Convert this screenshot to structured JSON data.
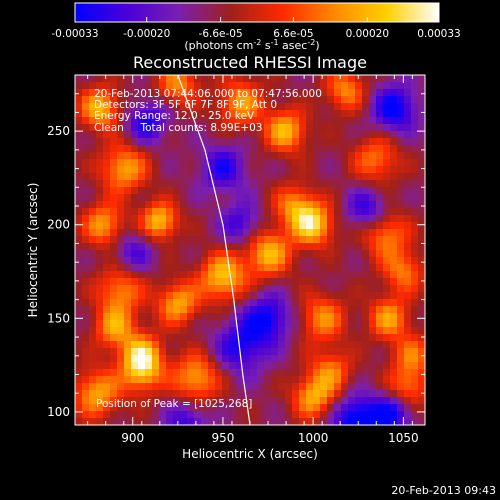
{
  "chart_data": {
    "type": "heatmap",
    "title": "Reconstructed RHESSI Image",
    "xlabel": "Heliocentric X (arcsec)",
    "ylabel": "Heliocentric Y (arcsec)",
    "xlim": [
      868,
      1062
    ],
    "ylim": [
      93,
      280
    ],
    "xticks": [
      900,
      950,
      1000,
      1050
    ],
    "yticks": [
      100,
      150,
      200,
      250
    ],
    "colorbar": {
      "label_prefix": "(photons cm",
      "label_exp1": "-2",
      "label_mid": " s",
      "label_exp2": "-1",
      "label_mid2": " asec",
      "label_exp3": "-2",
      "label_suffix": ")",
      "range": [
        -0.00033,
        0.00033
      ],
      "ticks": [
        {
          "value": -0.00033,
          "label": "-0.00033"
        },
        {
          "value": -0.0002,
          "label": "-0.00020"
        },
        {
          "value": -6.6e-05,
          "label": "-6.6e-05"
        },
        {
          "value": 6.6e-05,
          "label": "6.6e-05"
        },
        {
          "value": 0.0002,
          "label": "0.00020"
        },
        {
          "value": 0.00033,
          "label": "0.00033"
        }
      ],
      "colors": [
        "#0000ff",
        "#4a00d8",
        "#7a1fb0",
        "#a0201a",
        "#ff2a00",
        "#ff8a00",
        "#ffd000",
        "#ffffff"
      ]
    },
    "info_lines": [
      "20-Feb-2013 07:44:06.000 to 07:47:56.000",
      "Detectors: 3F 5F 6F 7F 8F 9F, Att 0",
      "Energy Range: 12.0 - 25.0 keV",
      "Clean     Total counts: 8.99E+03"
    ],
    "peak_label": "Position of Peak = [1025,268]",
    "limb_curve": [
      [
        925,
        280
      ],
      [
        940,
        240
      ],
      [
        950,
        200
      ],
      [
        956,
        160
      ],
      [
        961,
        120
      ],
      [
        965,
        93
      ]
    ],
    "image_blobs": [
      {
        "x": 882,
        "y": 262,
        "amp": 0.00028,
        "s": 8
      },
      {
        "x": 895,
        "y": 230,
        "amp": 0.00026,
        "s": 9
      },
      {
        "x": 884,
        "y": 200,
        "amp": 0.00025,
        "s": 8
      },
      {
        "x": 893,
        "y": 165,
        "amp": 0.00022,
        "s": 9
      },
      {
        "x": 880,
        "y": 110,
        "amp": 0.00026,
        "s": 9
      },
      {
        "x": 905,
        "y": 120,
        "amp": 0.0002,
        "s": 8
      },
      {
        "x": 915,
        "y": 202,
        "amp": 0.0003,
        "s": 7
      },
      {
        "x": 925,
        "y": 275,
        "amp": 0.00022,
        "s": 8
      },
      {
        "x": 960,
        "y": 265,
        "amp": 0.00024,
        "s": 9
      },
      {
        "x": 985,
        "y": 250,
        "amp": 0.00028,
        "s": 8
      },
      {
        "x": 1018,
        "y": 272,
        "amp": 0.00022,
        "s": 8
      },
      {
        "x": 1035,
        "y": 235,
        "amp": 0.0002,
        "s": 9
      },
      {
        "x": 1040,
        "y": 195,
        "amp": 0.00022,
        "s": 9
      },
      {
        "x": 990,
        "y": 210,
        "amp": 0.00022,
        "s": 8
      },
      {
        "x": 1000,
        "y": 200,
        "amp": 0.00032,
        "s": 8
      },
      {
        "x": 975,
        "y": 185,
        "amp": 0.00028,
        "s": 9
      },
      {
        "x": 950,
        "y": 172,
        "amp": 0.0003,
        "s": 9
      },
      {
        "x": 925,
        "y": 158,
        "amp": 0.00026,
        "s": 8
      },
      {
        "x": 1005,
        "y": 150,
        "amp": 0.00022,
        "s": 9
      },
      {
        "x": 1042,
        "y": 150,
        "amp": 0.00024,
        "s": 8
      },
      {
        "x": 1050,
        "y": 175,
        "amp": 0.0002,
        "s": 8
      },
      {
        "x": 905,
        "y": 130,
        "amp": 0.0003,
        "s": 8
      },
      {
        "x": 890,
        "y": 145,
        "amp": 0.00024,
        "s": 8
      },
      {
        "x": 935,
        "y": 118,
        "amp": 0.00026,
        "s": 9
      },
      {
        "x": 1000,
        "y": 108,
        "amp": 0.00026,
        "s": 8
      },
      {
        "x": 1010,
        "y": 122,
        "amp": 0.0002,
        "s": 8
      },
      {
        "x": 1052,
        "y": 112,
        "amp": 0.00022,
        "s": 8
      },
      {
        "x": 1055,
        "y": 130,
        "amp": 0.00018,
        "s": 8
      },
      {
        "x": 960,
        "y": 135,
        "amp": -0.00022,
        "s": 10
      },
      {
        "x": 975,
        "y": 150,
        "amp": -0.00024,
        "s": 9
      },
      {
        "x": 1045,
        "y": 262,
        "amp": -0.00026,
        "s": 9
      },
      {
        "x": 1030,
        "y": 208,
        "amp": -0.0002,
        "s": 8
      },
      {
        "x": 950,
        "y": 230,
        "amp": -0.0002,
        "s": 9
      },
      {
        "x": 908,
        "y": 255,
        "amp": -0.00022,
        "s": 8
      },
      {
        "x": 1025,
        "y": 95,
        "amp": -0.00032,
        "s": 9
      },
      {
        "x": 930,
        "y": 95,
        "amp": -0.00018,
        "s": 8
      },
      {
        "x": 1045,
        "y": 100,
        "amp": -0.00024,
        "s": 8
      },
      {
        "x": 900,
        "y": 185,
        "amp": -0.00015,
        "s": 8
      },
      {
        "x": 960,
        "y": 200,
        "amp": -0.00018,
        "s": 8
      }
    ]
  },
  "footer": {
    "timestamp": "20-Feb-2013 09:43"
  }
}
